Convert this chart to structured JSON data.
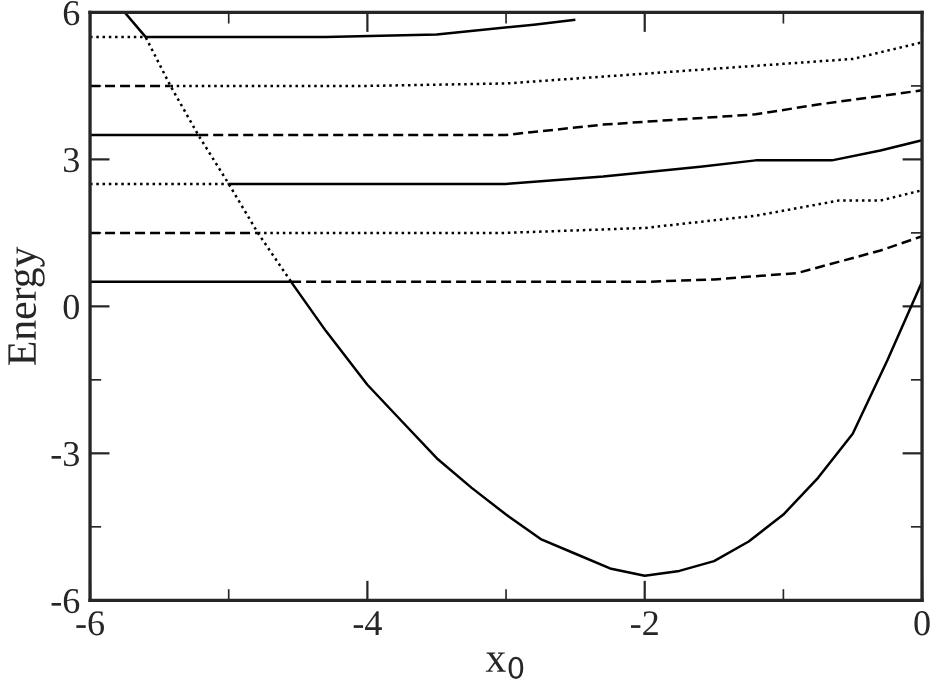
{
  "chart_data": {
    "type": "line",
    "xlabel": "x$_{0}$",
    "ylabel": "Energy",
    "xlim": [
      -6,
      0
    ],
    "ylim": [
      -6,
      6
    ],
    "xticks": [
      -6,
      -4,
      -2,
      0
    ],
    "yticks": [
      -6,
      -3,
      0,
      3,
      6
    ],
    "grid": false,
    "legend": false,
    "marker": "none",
    "series": [
      {
        "color": "#000000",
        "line_style": "solid",
        "x": [
          -5.75,
          -5.6,
          -4.3,
          -3.5,
          -2.8,
          -2.5,
          null,
          -6,
          -5.22,
          null,
          -5.0,
          -3.0,
          -2.3,
          -1.6,
          -1.2,
          -0.65,
          -0.3,
          0,
          null,
          -6,
          -4.55,
          -4.3,
          -4.0,
          -3.75,
          -3.5,
          -3.25,
          -3.0,
          -2.75,
          -2.5,
          -2.25,
          -2.0,
          -1.75,
          -1.5,
          -1.25,
          -1.0,
          -0.75,
          -0.5,
          -0.25,
          0
        ],
        "values": [
          6,
          5.5,
          5.5,
          5.55,
          5.75,
          5.85,
          null,
          3.5,
          3.5,
          null,
          2.5,
          2.5,
          2.65,
          2.85,
          2.98,
          2.98,
          3.18,
          3.39,
          null,
          0.5,
          0.5,
          -0.5,
          -1.6,
          -2.35,
          -3.1,
          -3.7,
          -4.25,
          -4.75,
          -5.05,
          -5.35,
          -5.5,
          -5.4,
          -5.2,
          -4.8,
          -4.25,
          -3.5,
          -2.6,
          -1.1,
          0.5
        ]
      },
      {
        "color": "#000000",
        "line_style": "dashed",
        "x": [
          -6,
          -5.42,
          null,
          -5.22,
          -3.5,
          -3.0,
          -2.3,
          -1.2,
          -0.75,
          0,
          null,
          -6,
          -4.79,
          null,
          -4.55,
          -2.0,
          -1.5,
          -0.9,
          -0.3,
          0
        ],
        "values": [
          4.5,
          4.5,
          null,
          3.5,
          3.5,
          3.5,
          3.71,
          3.92,
          4.12,
          4.41,
          null,
          1.5,
          1.5,
          null,
          0.5,
          0.5,
          0.55,
          0.68,
          1.14,
          1.43
        ]
      },
      {
        "color": "#000000",
        "line_style": "dotted",
        "x": [
          -6,
          -5.6,
          -5.42,
          -5.22,
          -5.0,
          -4.79,
          -4.55,
          null,
          -5.42,
          -4.0,
          -3.0,
          -2.0,
          -1.0,
          -0.5,
          0,
          null,
          -6,
          -5.0,
          null,
          -4.79,
          -3.0,
          -2.0,
          -1.2,
          -0.6,
          -0.3,
          0
        ],
        "values": [
          5.5,
          5.5,
          4.5,
          3.5,
          2.5,
          1.5,
          0.5,
          null,
          4.5,
          4.5,
          4.55,
          4.75,
          4.95,
          5.05,
          5.39,
          null,
          2.5,
          2.5,
          null,
          1.5,
          1.5,
          1.6,
          1.85,
          2.16,
          2.16,
          2.37
        ]
      }
    ]
  }
}
